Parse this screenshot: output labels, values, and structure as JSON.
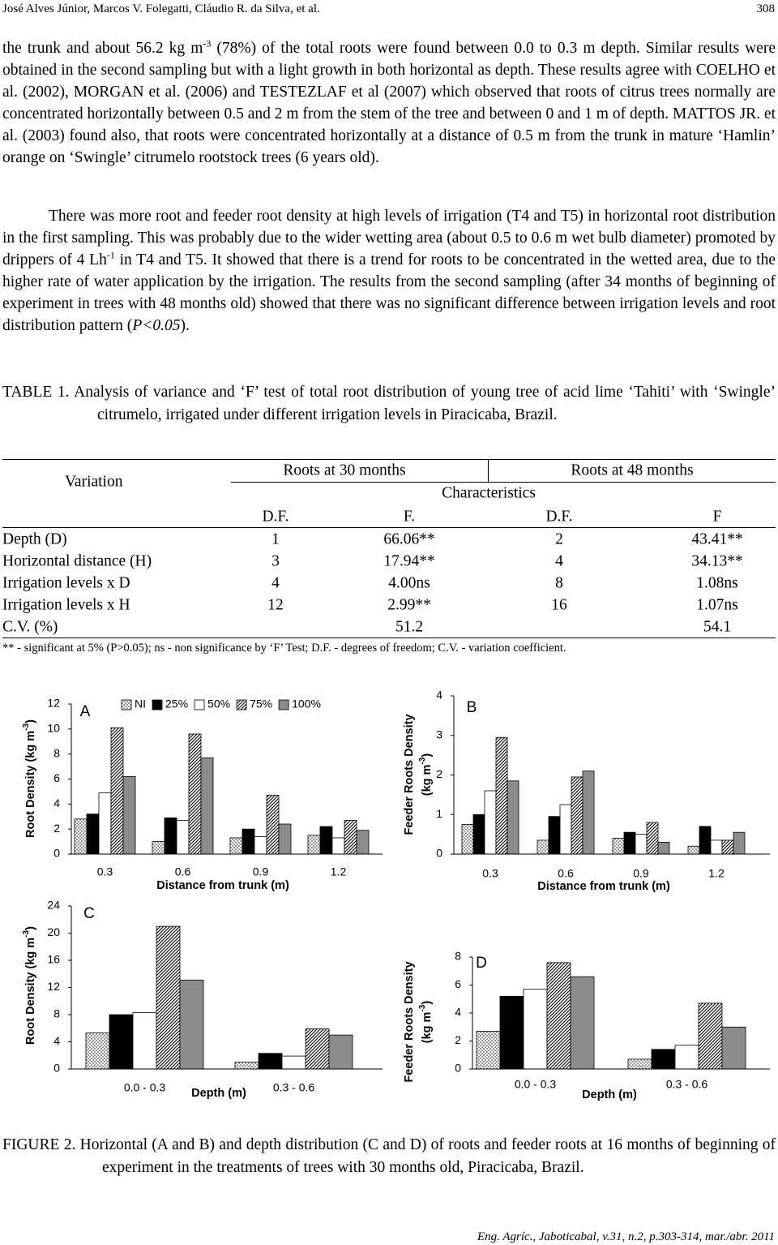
{
  "header": {
    "authors": "José Alves Júnior, Marcos V. Folegatti, Cláudio R. da Silva, et al.",
    "page": "308"
  },
  "paragraphs": [
    [
      {
        "text": "the trunk and about 56.2 kg m"
      },
      {
        "text": "-3",
        "sup": true
      },
      {
        "text": " (78%) of the total roots were found between 0.0 to 0.3 m depth. Similar results were obtained in the second sampling but with a light growth in both horizontal as depth. These results agree with COELHO et al. (2002), MORGAN et al. (2006) and TESTEZLAF et al (2007) which observed that roots of citrus trees normally are concentrated horizontally between 0.5 and 2 m from the stem of the tree and between 0 and 1 m of depth. MATTOS JR. et al. (2003) found also, that roots were concentrated horizontally at a distance of 0.5 m from the trunk in mature ‘Hamlin’ orange on ‘Swingle’ citrumelo rootstock trees (6 years old)."
      }
    ],
    [
      {
        "text": "There was more root and feeder root density at high levels of irrigation (T4 and T5) in horizontal root distribution in the first sampling. This was probably due to the wider wetting area (about 0.5 to 0.6 m wet bulb diameter) promoted by drippers of 4 Lh"
      },
      {
        "text": "-1",
        "sup": true
      },
      {
        "text": " in T4 and T5. It showed that there is a trend for roots to be concentrated in the wetted area, due to the higher rate of water application by the irrigation. The results from the second sampling (after 34 months of beginning of experiment in trees with 48 months old) showed that there was no significant difference between irrigation levels and root distribution pattern ("
      },
      {
        "text": "P<0.05",
        "italic": true
      },
      {
        "text": ")."
      }
    ]
  ],
  "table": {
    "label": "TABLE 1.",
    "caption": "Analysis of variance and ‘F’ test of total root distribution of young tree of acid lime ‘Tahiti’ with ‘Swingle’ citrumelo, irrigated under different irrigation levels in Piracicaba, Brazil.",
    "variation": "Variation",
    "groups": [
      "Roots at 30 months",
      "Roots  at 48 months"
    ],
    "characteristics": "Characteristics",
    "columns": [
      "D.F.",
      "F.",
      "D.F.",
      "F"
    ],
    "rows": [
      [
        "Depth (D)",
        "1",
        "66.06**",
        "2",
        "43.41**"
      ],
      [
        "Horizontal distance (H)",
        "3",
        "17.94**",
        "4",
        "34.13**"
      ],
      [
        "Irrigation levels x D",
        "4",
        "4.00ns",
        "8",
        "1.08ns"
      ],
      [
        "Irrigation levels x H",
        "12",
        "2.99**",
        "16",
        "1.07ns"
      ],
      [
        "C.V. (%)",
        null,
        "51.2",
        null,
        "54.1"
      ]
    ],
    "footnote": "** - significant at 5% (P>0.05); ns - non significance by ‘F’ Test; D.F. - degrees of freedom; C.V. - variation coefficient."
  },
  "chart_data": [
    {
      "type": "bar",
      "panel": "A",
      "legend": true,
      "ylabel": [
        [
          {
            "text": "Root Density (kg m"
          },
          {
            "text": "-3",
            "sup": true
          },
          {
            "text": ")"
          }
        ]
      ],
      "xlabel": "Distance from trunk (m)",
      "categories": [
        "0.3",
        "0.6",
        "0.9",
        "1.2"
      ],
      "ylim": [
        0,
        12
      ],
      "yticks": [
        0,
        2,
        4,
        6,
        8,
        10,
        12
      ],
      "series": [
        {
          "name": "NI",
          "color": "#9a9a9a",
          "pattern": "dots",
          "values": [
            2.8,
            1.0,
            1.3,
            1.5
          ]
        },
        {
          "name": "25%",
          "color": "#000000",
          "values": [
            3.2,
            2.9,
            2.0,
            2.2
          ]
        },
        {
          "name": "50%",
          "color": "#ffffff",
          "values": [
            4.9,
            2.7,
            1.4,
            1.3
          ]
        },
        {
          "name": "75%",
          "color": "#000000",
          "pattern": "hatch",
          "values": [
            10.1,
            9.6,
            4.7,
            2.7
          ]
        },
        {
          "name": "100%",
          "color": "#8c8c8c",
          "values": [
            6.2,
            7.7,
            2.4,
            1.9
          ]
        }
      ]
    },
    {
      "type": "bar",
      "panel": "B",
      "ylabel": [
        [
          {
            "text": "Feeder Roots Density"
          }
        ],
        [
          {
            "text": "(kg m"
          },
          {
            "text": "-3",
            "sup": true
          },
          {
            "text": ")"
          }
        ]
      ],
      "xlabel": "Distance from trunk (m)",
      "categories": [
        "0.3",
        "0.6",
        "0.9",
        "1.2"
      ],
      "ylim": [
        0,
        4
      ],
      "yticks": [
        0,
        1,
        2,
        3,
        4
      ],
      "series": [
        {
          "color": "#9a9a9a",
          "pattern": "dots",
          "values": [
            0.75,
            0.35,
            0.4,
            0.2
          ]
        },
        {
          "color": "#000000",
          "values": [
            1.0,
            0.95,
            0.55,
            0.7
          ]
        },
        {
          "color": "#ffffff",
          "values": [
            1.6,
            1.25,
            0.5,
            0.35
          ]
        },
        {
          "color": "#000000",
          "pattern": "hatch",
          "values": [
            2.95,
            1.95,
            0.8,
            0.35
          ]
        },
        {
          "color": "#8c8c8c",
          "values": [
            1.85,
            2.1,
            0.3,
            0.55
          ]
        }
      ]
    },
    {
      "type": "bar",
      "panel": "C",
      "ylabel": [
        [
          {
            "text": "Root Density (kg m"
          },
          {
            "text": "-3",
            "sup": true
          },
          {
            "text": ")"
          }
        ]
      ],
      "xlabel": "Depth (m)",
      "categories": [
        "0.0 - 0.3",
        "0.3 - 0.6"
      ],
      "ylim": [
        0,
        24
      ],
      "yticks": [
        0,
        4,
        8,
        12,
        16,
        20,
        24
      ],
      "series": [
        {
          "color": "#9a9a9a",
          "pattern": "dots",
          "values": [
            5.3,
            1.0
          ]
        },
        {
          "color": "#000000",
          "values": [
            8.0,
            2.3
          ]
        },
        {
          "color": "#ffffff",
          "values": [
            8.3,
            1.9
          ]
        },
        {
          "color": "#000000",
          "pattern": "hatch",
          "values": [
            21.0,
            5.9
          ]
        },
        {
          "color": "#8c8c8c",
          "values": [
            13.1,
            5.0
          ]
        }
      ]
    },
    {
      "type": "bar",
      "panel": "D",
      "ylabel": [
        [
          {
            "text": "Feeder Roots Density"
          }
        ],
        [
          {
            "text": "(kg m"
          },
          {
            "text": "-3",
            "sup": true
          },
          {
            "text": ")"
          }
        ]
      ],
      "xlabel": "Depth (m)",
      "categories": [
        "0.0 - 0.3",
        "0.3 - 0.6"
      ],
      "ylim": [
        0,
        8
      ],
      "yticks": [
        0,
        2,
        4,
        6,
        8
      ],
      "series": [
        {
          "color": "#9a9a9a",
          "pattern": "dots",
          "values": [
            2.7,
            0.7
          ]
        },
        {
          "color": "#000000",
          "values": [
            5.2,
            1.4
          ]
        },
        {
          "color": "#ffffff",
          "values": [
            5.7,
            1.7
          ]
        },
        {
          "color": "#000000",
          "pattern": "hatch",
          "values": [
            7.6,
            4.7
          ]
        },
        {
          "color": "#8c8c8c",
          "values": [
            6.6,
            3.0
          ]
        }
      ]
    }
  ],
  "figure_caption": {
    "label": "FIGURE 2.",
    "text": "Horizontal (A and B) and depth distribution (C and D) of roots and feeder roots at 16 months of beginning of experiment in the treatments of trees with 30 months old, Piracicaba, Brazil."
  },
  "footer": "Eng. Agríc., Jaboticabal, v.31, n.2, p.303-314, mar./abr. 2011"
}
